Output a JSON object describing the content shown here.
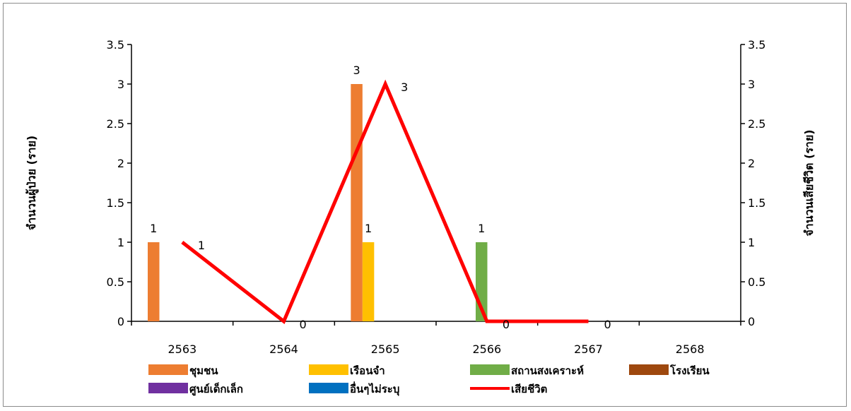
{
  "chart_data": {
    "type": "bar",
    "categories": [
      "2563",
      "2564",
      "2565",
      "2566",
      "2567",
      "2568"
    ],
    "ylabel": "จำนวนผู้ป่วย (ราย)",
    "y2label": "จำนวนเสียชีวิต (ราย)",
    "ylim": [
      0,
      3.5
    ],
    "y2lim": [
      0,
      3.5
    ],
    "y_ticks": [
      "0",
      "0.5",
      "1",
      "1.5",
      "2",
      "2.5",
      "3",
      "3.5"
    ],
    "series": [
      {
        "name": "ชุมชน",
        "color": "#ED7D31",
        "values": [
          1,
          null,
          3,
          null,
          null,
          null
        ]
      },
      {
        "name": "เรือนจำ",
        "color": "#FFC000",
        "values": [
          null,
          null,
          1,
          null,
          null,
          null
        ]
      },
      {
        "name": "สถานสงเคราะห์",
        "color": "#70AD47",
        "values": [
          null,
          null,
          null,
          1,
          null,
          null
        ]
      },
      {
        "name": "โรงเรียน",
        "color": "#9E480E",
        "values": [
          null,
          null,
          null,
          null,
          null,
          null
        ]
      },
      {
        "name": "ศูนย์เด็กเล็ก",
        "color": "#7030A0",
        "values": [
          null,
          null,
          null,
          null,
          null,
          null
        ]
      },
      {
        "name": "อื่นๆไม่ระบุ",
        "color": "#0070C0",
        "values": [
          null,
          null,
          null,
          null,
          null,
          null
        ]
      }
    ],
    "line_series": {
      "name": "เสียชีวิต",
      "color": "#FF0000",
      "axis": "right",
      "values": [
        1,
        0,
        3,
        0,
        0,
        null
      ]
    },
    "legend_position": "bottom",
    "grid": false
  }
}
